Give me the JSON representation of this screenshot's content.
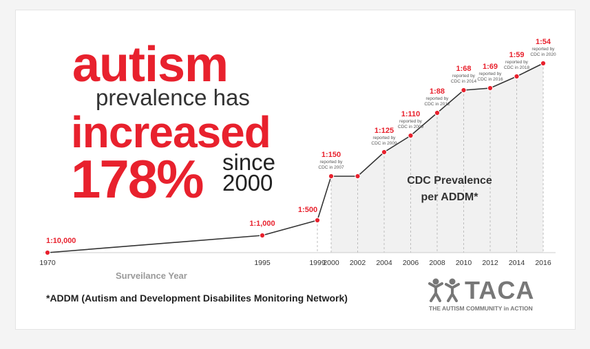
{
  "headline": {
    "word1": "autism",
    "line2": "prevalence has",
    "word3": "increased",
    "percent": "178%",
    "since": "since",
    "year": "2000"
  },
  "chart_data": {
    "type": "line",
    "x": [
      1970,
      1995,
      1999,
      2000,
      2002,
      2004,
      2006,
      2008,
      2010,
      2012,
      2014,
      2016
    ],
    "tick_labels": [
      "1970",
      "1995",
      "1999",
      "2000",
      "2002",
      "2004",
      "2006",
      "2008",
      "2010",
      "2012",
      "2014",
      "2016"
    ],
    "points": [
      {
        "label": "1:10,000",
        "note": ""
      },
      {
        "label": "1:1,000",
        "note": ""
      },
      {
        "label": "1:500",
        "note": ""
      },
      {
        "label": "1:150",
        "note": "reported by CDC in 2007"
      },
      {
        "label": "",
        "note": ""
      },
      {
        "label": "1:125",
        "note": "reported by CDC in 2009"
      },
      {
        "label": "1:110",
        "note": "reported by CDC in 2009"
      },
      {
        "label": "1:88",
        "note": "reported by CDC in 2012"
      },
      {
        "label": "1:68",
        "note": "reported by CDC in 2014"
      },
      {
        "label": "1:69",
        "note": "reported by CDC in 2016"
      },
      {
        "label": "1:59",
        "note": "reported by CDC in 2018"
      },
      {
        "label": "1:54",
        "note": "reported by CDC in 2020"
      }
    ],
    "xlabel": "Surveilance Year",
    "area_label": [
      "CDC Prevalence",
      "per ADDM*"
    ],
    "grid": false,
    "line_color": "#333333",
    "marker_color": "#e8212d",
    "area_color": "#f1f1f1"
  },
  "footnote": "*ADDM (Autism and Development Disabilites Monitoring Network)",
  "brand": {
    "name": "TACA",
    "tagline": "THE AUTISM COMMUNITY in ACTION",
    "logo_icon": "two-figures-icon",
    "color": "#777777"
  }
}
